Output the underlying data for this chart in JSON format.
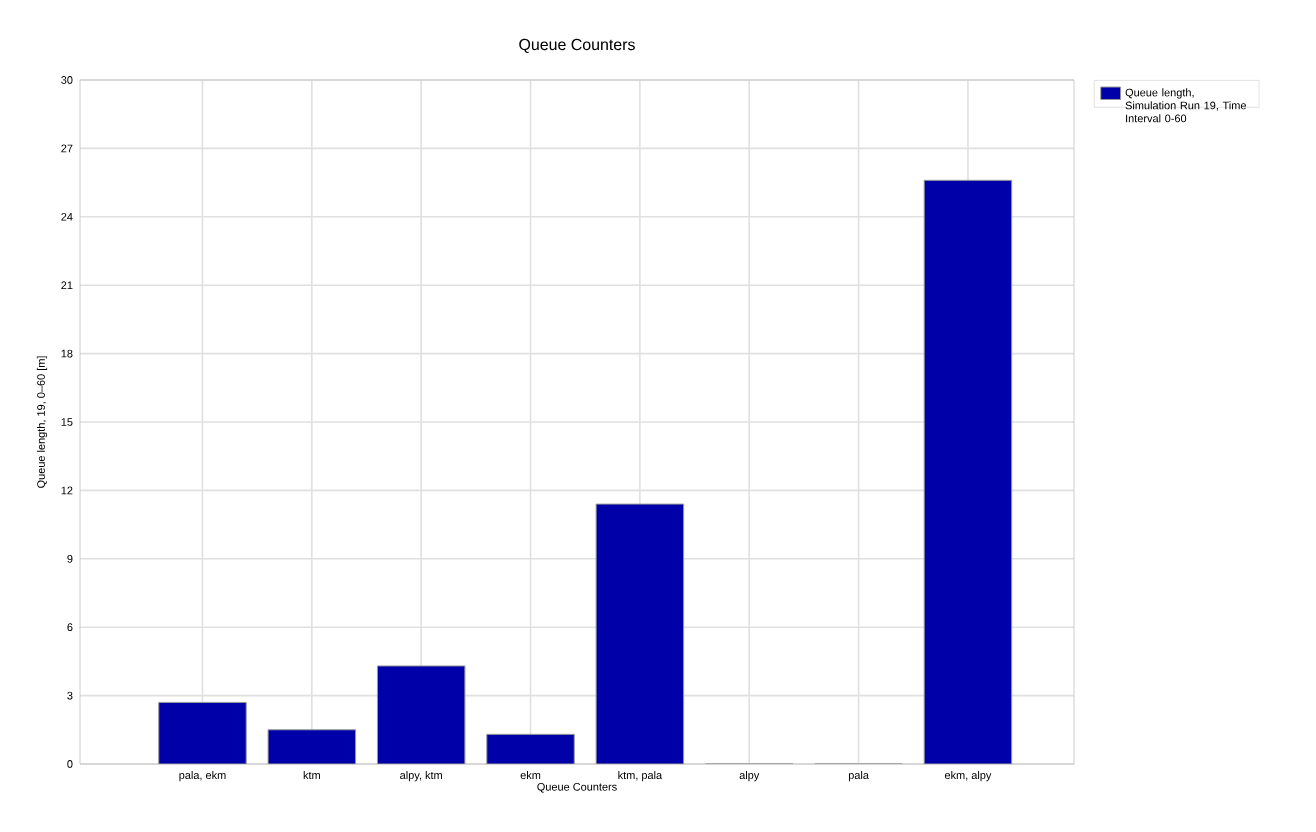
{
  "chart_data": {
    "type": "bar",
    "title": "Queue Counters",
    "xlabel": "Queue Counters",
    "ylabel": "Queue length, 19, 0–60 [m]",
    "categories": [
      "pala, ekm",
      "ktm",
      "alpy, ktm",
      "ekm",
      "ktm, pala",
      "alpy",
      "pala",
      "ekm, alpy"
    ],
    "series": [
      {
        "name": "Queue length, Simulation Run 19, Time Interval 0-60",
        "color": "#0000a8",
        "values": [
          2.7,
          1.5,
          4.3,
          1.3,
          11.4,
          0,
          0,
          25.6
        ]
      }
    ],
    "ylim": [
      0,
      30
    ],
    "yticks": [
      0,
      3,
      6,
      9,
      12,
      15,
      18,
      21,
      24,
      27,
      30
    ],
    "grid": true,
    "legend": "top right"
  }
}
